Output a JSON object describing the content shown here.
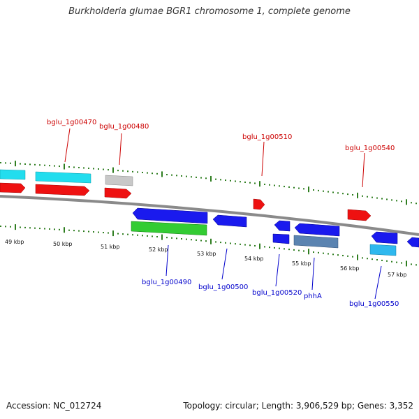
{
  "title": "Burkholderia glumae BGR1 chromosome 1, complete genome",
  "footer": {
    "accession": "Accession: NC_012724",
    "summary": "Topology: circular; Length: 3,906,529 bp; Genes: 3,352"
  },
  "colors": {
    "forward_label": "#cc0000",
    "reverse_label": "#0000cc",
    "tick": "#2e7d1f",
    "backbone": "#808080",
    "red_gene": "#ee1111",
    "blue_gene": "#1a1aee",
    "cyan_gene": "#22ddee",
    "grey_gene": "#c8c8c8",
    "green_gene": "#33cc33",
    "steel_gene": "#5b84b1",
    "sky_gene": "#2fb8ee"
  },
  "scale_labels": [
    "49 kbp",
    "50 kbp",
    "51 kbp",
    "52 kbp",
    "53 kbp",
    "54 kbp",
    "55 kbp",
    "56 kbp",
    "57 kbp"
  ],
  "forward_gene_labels": [
    "bglu_1g00470",
    "bglu_1g00480",
    "bglu_1g00510",
    "bglu_1g00540"
  ],
  "reverse_gene_labels": [
    "bglu_1g00490",
    "bglu_1g00500",
    "bglu_1g00520",
    "phhA",
    "bglu_1g00550"
  ]
}
